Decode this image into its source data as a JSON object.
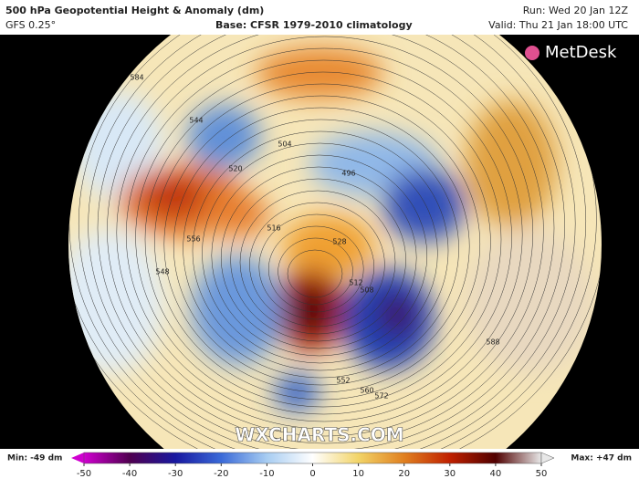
{
  "header": {
    "title": "500 hPa Geopotential Height & Anomaly (dm)",
    "model": "GFS 0.25°",
    "base": "Base: CFSR 1979-2010 climatology",
    "run": "Run: Wed 20 Jan 12Z",
    "valid": "Valid: Thu 21 Jan 18:00 UTC"
  },
  "logo": "MetDesk",
  "watermark": "WXCHARTS.COM",
  "colorbar": {
    "min_label": "Min: -49 dm",
    "max_label": "Max: +47 dm",
    "ticks": [
      -50,
      -40,
      -30,
      -20,
      -10,
      0,
      10,
      20,
      30,
      40,
      50
    ]
  },
  "contour_labels": [
    "584",
    "544",
    "504",
    "520",
    "496",
    "516",
    "528",
    "512",
    "556",
    "548",
    "552",
    "560",
    "572",
    "588",
    "508"
  ]
}
